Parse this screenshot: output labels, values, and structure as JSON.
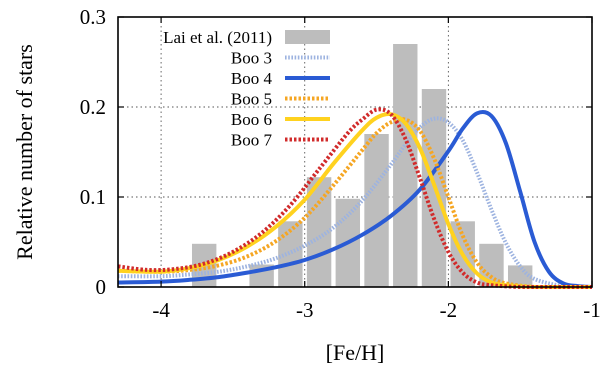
{
  "chart_data": {
    "type": "bar",
    "xlabel": "[Fe/H]",
    "ylabel": "Relative number of stars",
    "xlim": [
      -4.3,
      -1.0
    ],
    "ylim": [
      0,
      0.3
    ],
    "x_ticks": [
      -4,
      -3,
      -2,
      -1
    ],
    "x_tick_labels": [
      "-4",
      "-3",
      "-2",
      "-1"
    ],
    "y_ticks": [
      0,
      0.1,
      0.2,
      0.3
    ],
    "y_tick_labels": [
      "0",
      "0.1",
      "0.2",
      "0.3"
    ],
    "grid": "dotted at major ticks",
    "legend_position": "top-left",
    "histogram": {
      "name": "Lai et al. (2011)",
      "color": "#bdbdbd",
      "bin_width": 0.2,
      "bins": [
        {
          "x": -3.7,
          "value": 0.048
        },
        {
          "x": -3.3,
          "value": 0.025
        },
        {
          "x": -3.1,
          "value": 0.073
        },
        {
          "x": -2.9,
          "value": 0.122
        },
        {
          "x": -2.7,
          "value": 0.098
        },
        {
          "x": -2.5,
          "value": 0.17
        },
        {
          "x": -2.3,
          "value": 0.27
        },
        {
          "x": -2.1,
          "value": 0.22
        },
        {
          "x": -1.9,
          "value": 0.073
        },
        {
          "x": -1.7,
          "value": 0.048
        },
        {
          "x": -1.5,
          "value": 0.024
        }
      ]
    },
    "series": [
      {
        "name": "Boo 3",
        "color": "#9db3e0",
        "style": "dotted",
        "x": [
          -4.3,
          -4.0,
          -3.8,
          -3.6,
          -3.4,
          -3.2,
          -3.0,
          -2.8,
          -2.6,
          -2.4,
          -2.3,
          -2.2,
          -2.1,
          -2.0,
          -1.9,
          -1.8,
          -1.7,
          -1.6,
          -1.5,
          -1.4,
          -1.2,
          -1.0
        ],
        "y": [
          0.012,
          0.012,
          0.014,
          0.017,
          0.023,
          0.032,
          0.046,
          0.066,
          0.096,
          0.136,
          0.158,
          0.177,
          0.187,
          0.183,
          0.163,
          0.127,
          0.086,
          0.049,
          0.023,
          0.009,
          0.001,
          0.0
        ]
      },
      {
        "name": "Boo 4",
        "color": "#2a5bd4",
        "style": "solid",
        "x": [
          -4.3,
          -4.0,
          -3.8,
          -3.6,
          -3.4,
          -3.2,
          -3.0,
          -2.8,
          -2.6,
          -2.4,
          -2.2,
          -2.0,
          -1.9,
          -1.8,
          -1.7,
          -1.6,
          -1.5,
          -1.4,
          -1.3,
          -1.2,
          -1.1,
          -1.0
        ],
        "y": [
          0.005,
          0.006,
          0.008,
          0.011,
          0.016,
          0.022,
          0.03,
          0.042,
          0.058,
          0.079,
          0.108,
          0.151,
          0.176,
          0.193,
          0.19,
          0.16,
          0.106,
          0.05,
          0.017,
          0.004,
          0.001,
          0.0
        ]
      },
      {
        "name": "Boo 5",
        "color": "#f5a623",
        "style": "dotted",
        "x": [
          -4.3,
          -4.0,
          -3.8,
          -3.6,
          -3.4,
          -3.2,
          -3.0,
          -2.8,
          -2.6,
          -2.5,
          -2.4,
          -2.3,
          -2.2,
          -2.1,
          -2.0,
          -1.9,
          -1.8,
          -1.7,
          -1.6,
          -1.4,
          -1.2,
          -1.0
        ],
        "y": [
          0.018,
          0.017,
          0.019,
          0.024,
          0.034,
          0.051,
          0.077,
          0.113,
          0.152,
          0.171,
          0.183,
          0.186,
          0.174,
          0.143,
          0.1,
          0.057,
          0.027,
          0.011,
          0.004,
          0.0,
          0.0,
          0.0
        ]
      },
      {
        "name": "Boo 6",
        "color": "#ffd21f",
        "style": "solid",
        "x": [
          -4.3,
          -4.0,
          -3.8,
          -3.6,
          -3.4,
          -3.2,
          -3.0,
          -2.8,
          -2.6,
          -2.5,
          -2.4,
          -2.3,
          -2.2,
          -2.1,
          -2.0,
          -1.9,
          -1.8,
          -1.7,
          -1.6,
          -1.4,
          -1.2,
          -1.0
        ],
        "y": [
          0.018,
          0.017,
          0.021,
          0.03,
          0.045,
          0.067,
          0.097,
          0.137,
          0.174,
          0.188,
          0.192,
          0.182,
          0.155,
          0.114,
          0.07,
          0.036,
          0.015,
          0.005,
          0.002,
          0.0,
          0.0,
          0.0
        ]
      },
      {
        "name": "Boo 7",
        "color": "#d12b2b",
        "style": "dotted",
        "x": [
          -4.3,
          -4.1,
          -3.9,
          -3.7,
          -3.5,
          -3.3,
          -3.1,
          -2.9,
          -2.7,
          -2.6,
          -2.5,
          -2.4,
          -2.3,
          -2.2,
          -2.1,
          -2.0,
          -1.9,
          -1.8,
          -1.7,
          -1.5,
          -1.3,
          -1.0
        ],
        "y": [
          0.023,
          0.019,
          0.02,
          0.026,
          0.039,
          0.06,
          0.091,
          0.131,
          0.171,
          0.186,
          0.197,
          0.192,
          0.165,
          0.122,
          0.076,
          0.039,
          0.016,
          0.005,
          0.002,
          0.0,
          0.0,
          0.0
        ]
      }
    ]
  }
}
